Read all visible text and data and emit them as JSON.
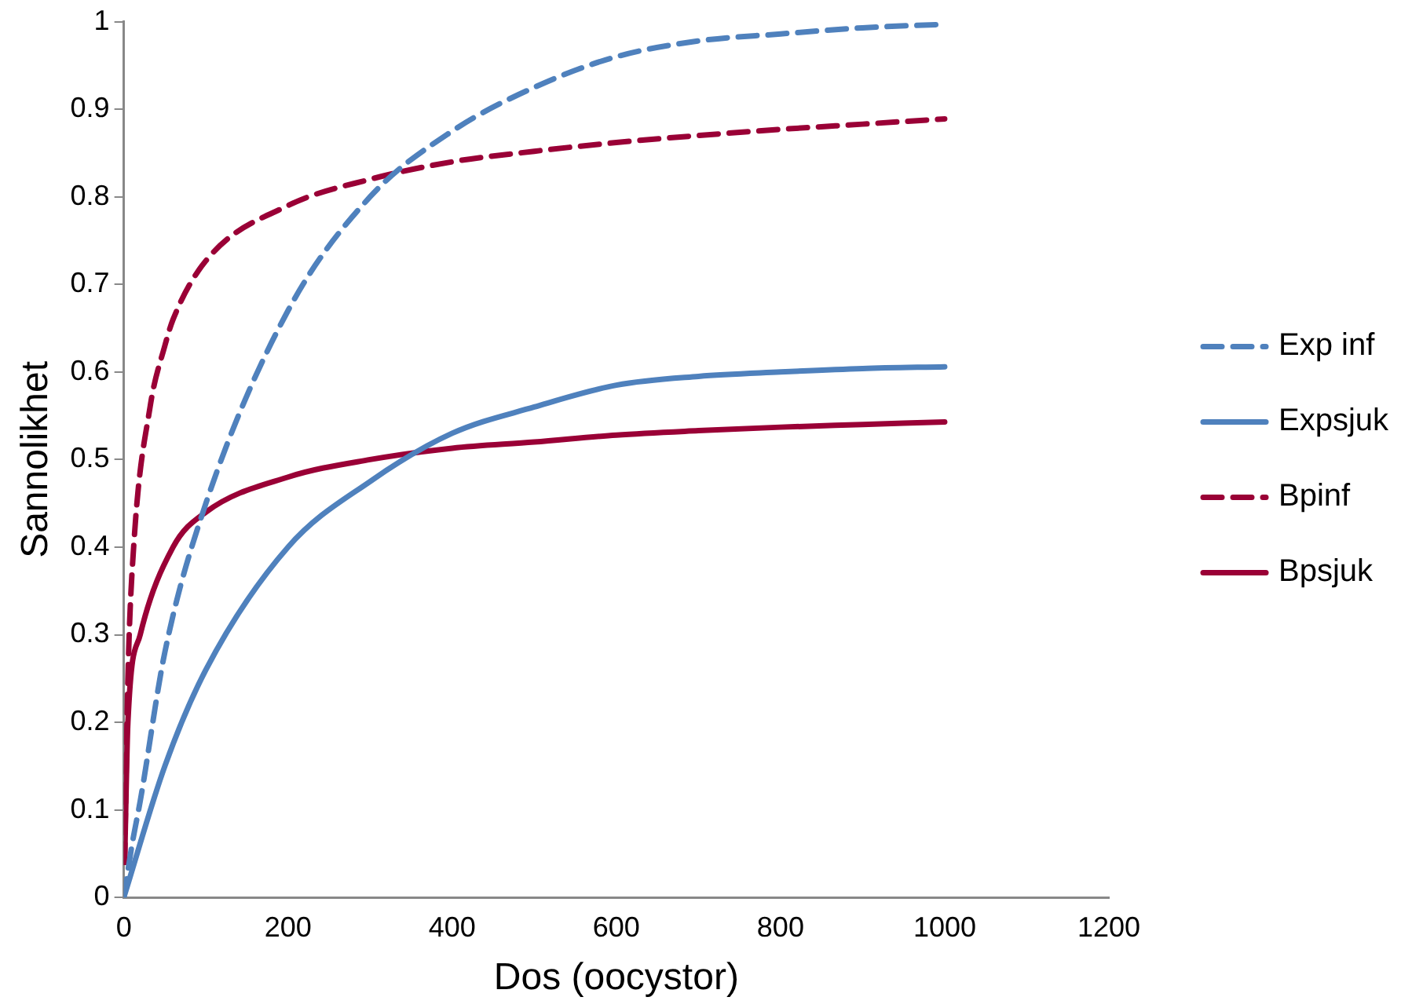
{
  "chart_data": {
    "type": "line",
    "xlabel": "Dos (oocystor)",
    "ylabel": "Sannolikhet",
    "xlim": [
      0,
      1200
    ],
    "xticks": [
      0,
      200,
      400,
      600,
      800,
      1000,
      1200
    ],
    "ylim": [
      0,
      1
    ],
    "yticks": [
      0,
      0.1,
      0.2,
      0.3,
      0.4,
      0.5,
      0.6,
      0.7,
      0.8,
      0.9,
      1
    ],
    "grid": false,
    "legend": "right",
    "marker": "none",
    "series": [
      {
        "name": "Exp inf",
        "color": "#4f81bd",
        "line_style": "dashed",
        "x": [
          0,
          10,
          20,
          50,
          100,
          200,
          300,
          400,
          500,
          600,
          700,
          800,
          900,
          1000
        ],
        "values": [
          0,
          0.06,
          0.11,
          0.28,
          0.45,
          0.67,
          0.8,
          0.875,
          0.925,
          0.96,
          0.978,
          0.986,
          0.993,
          0.997
        ]
      },
      {
        "name": "Expsjuk",
        "color": "#4f81bd",
        "line_style": "solid",
        "x": [
          0,
          50,
          100,
          200,
          300,
          400,
          500,
          600,
          700,
          800,
          900,
          1000
        ],
        "values": [
          0,
          0.15,
          0.26,
          0.4,
          0.475,
          0.53,
          0.56,
          0.585,
          0.595,
          0.6,
          0.604,
          0.606
        ]
      },
      {
        "name": "Bpinf",
        "color": "#9a0036",
        "line_style": "dashed",
        "x": [
          1,
          5,
          12,
          32,
          50,
          60,
          100,
          200,
          300,
          400,
          500,
          600,
          700,
          800,
          900,
          1000
        ],
        "values": [
          0.04,
          0.25,
          0.4,
          0.56,
          0.63,
          0.66,
          0.727,
          0.79,
          0.82,
          0.84,
          0.852,
          0.862,
          0.87,
          0.877,
          0.883,
          0.889
        ]
      },
      {
        "name": "Bpsjuk",
        "color": "#9a0036",
        "line_style": "solid",
        "x": [
          1,
          5,
          20,
          60,
          100,
          200,
          300,
          400,
          500,
          600,
          700,
          800,
          900,
          1000
        ],
        "values": [
          0.04,
          0.2,
          0.3,
          0.4,
          0.44,
          0.48,
          0.5,
          0.513,
          0.52,
          0.528,
          0.533,
          0.537,
          0.54,
          0.543
        ]
      }
    ]
  }
}
